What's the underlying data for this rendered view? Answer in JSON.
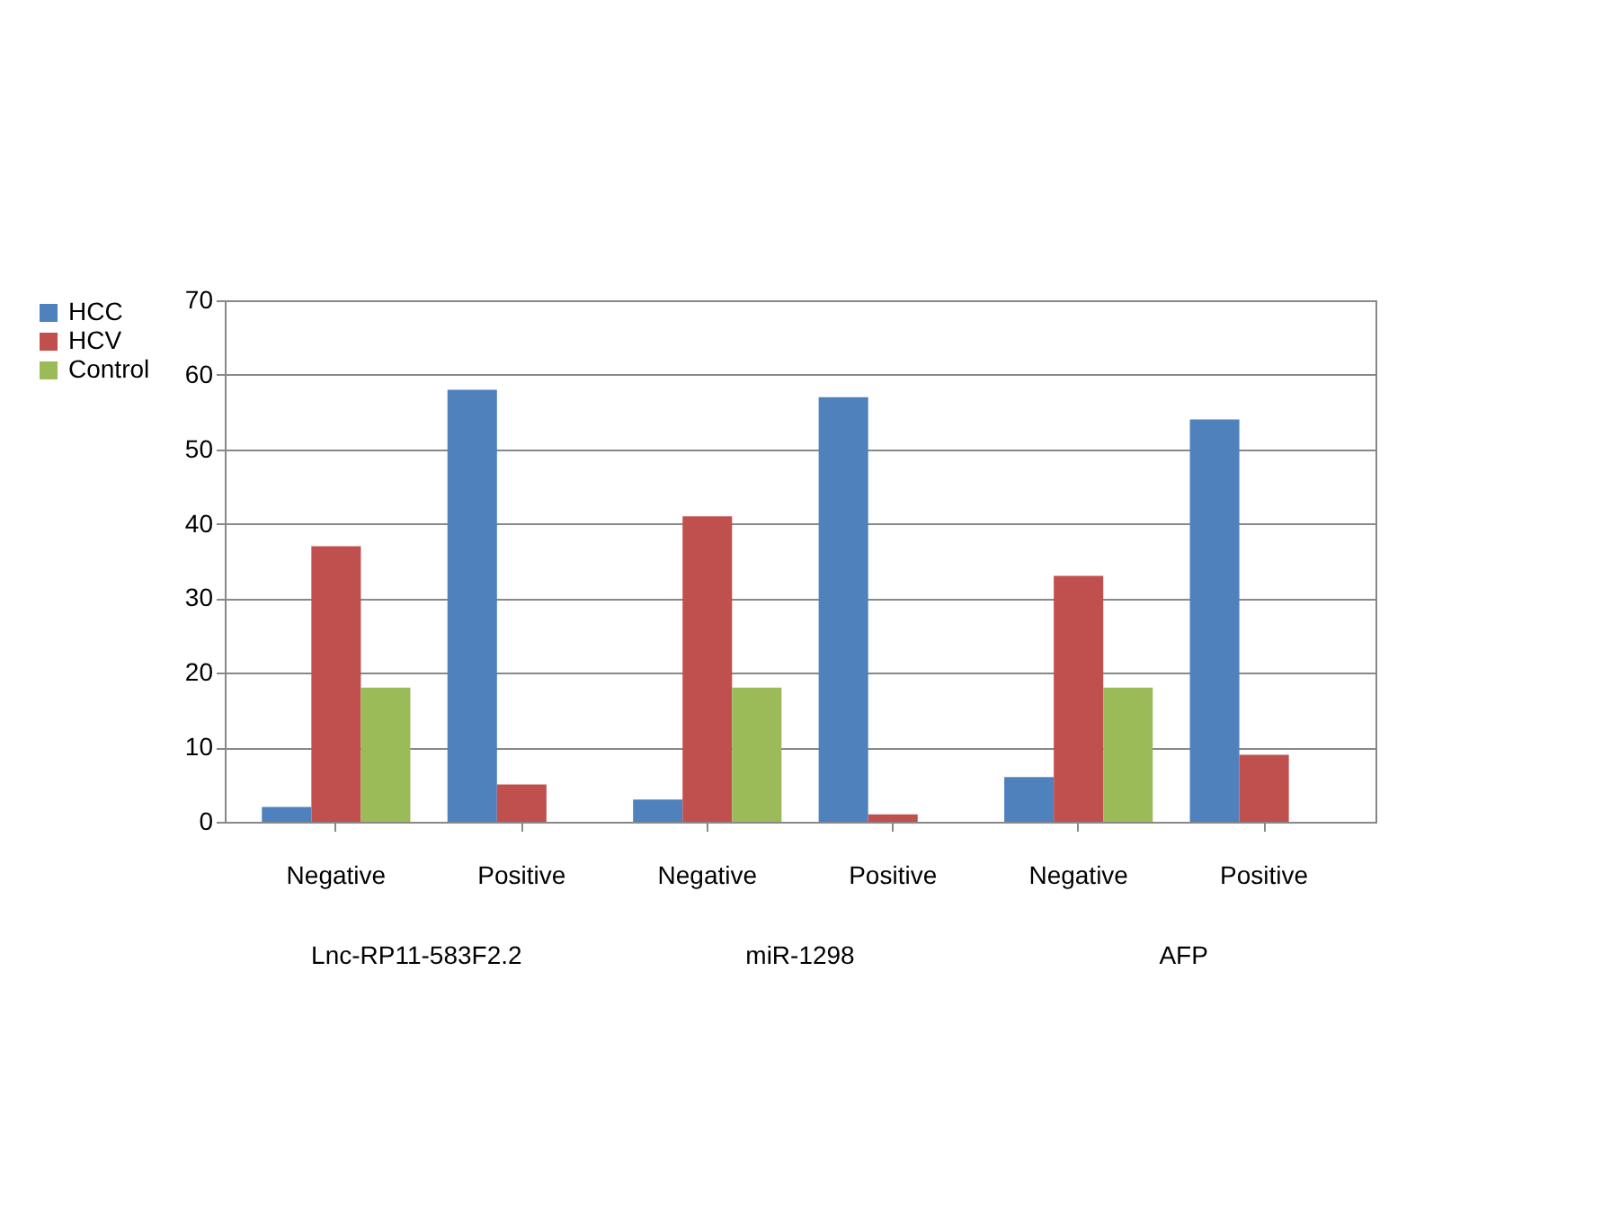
{
  "chart_data": {
    "type": "bar",
    "categories": [
      "Negative",
      "Positive",
      "Negative",
      "Positive",
      "Negative",
      "Positive"
    ],
    "series": [
      {
        "name": "HCC",
        "color": "#4f81bd",
        "values": [
          2,
          58,
          3,
          57,
          6,
          54
        ]
      },
      {
        "name": "HCV",
        "color": "#c0504d",
        "values": [
          37,
          5,
          41,
          1,
          33,
          9
        ]
      },
      {
        "name": "Control",
        "color": "#9bbb59",
        "values": [
          18,
          0,
          18,
          0,
          18,
          0
        ]
      }
    ],
    "annotations": [
      "Lnc-RP11-583F2.2",
      "miR-1298",
      "AFP"
    ],
    "ylim": [
      0,
      70
    ],
    "yticks": [
      0,
      10,
      20,
      30,
      40,
      50,
      60,
      70
    ],
    "grid": "y",
    "legend": "left"
  }
}
